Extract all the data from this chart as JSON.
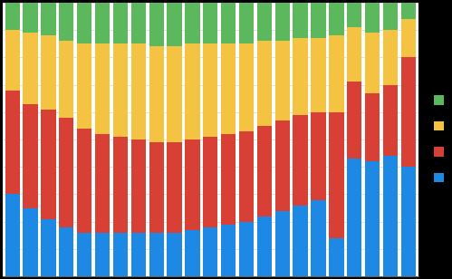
{
  "blue": [
    30,
    25,
    21,
    18,
    16,
    16,
    16,
    16,
    16,
    16,
    17,
    18,
    19,
    20,
    22,
    24,
    26,
    28,
    14,
    43,
    42,
    44,
    40
  ],
  "red": [
    38,
    38,
    40,
    40,
    38,
    36,
    35,
    34,
    33,
    33,
    33,
    33,
    33,
    33,
    33,
    33,
    33,
    32,
    46,
    28,
    25,
    26,
    40
  ],
  "yellow": [
    22,
    26,
    27,
    28,
    31,
    33,
    34,
    35,
    35,
    35,
    35,
    34,
    33,
    32,
    31,
    29,
    28,
    27,
    28,
    20,
    22,
    20,
    14
  ],
  "green": [
    10,
    11,
    12,
    14,
    15,
    15,
    15,
    15,
    16,
    16,
    15,
    15,
    15,
    15,
    14,
    14,
    13,
    13,
    12,
    9,
    11,
    10,
    6
  ],
  "colors_btop": [
    "#1e88e5",
    "#d94035",
    "#f5c342",
    "#5cb85c"
  ],
  "legend_colors": [
    "#5cb85c",
    "#f5c342",
    "#d94035",
    "#1e88e5"
  ],
  "n_bars": 23,
  "bar_width": 0.82,
  "ylim": [
    0,
    100
  ],
  "bg_color": "#000000",
  "plot_bg": "#ffffff",
  "figsize": [
    4.99,
    3.08
  ],
  "dpi": 100,
  "grid_color": "#aaaaaa",
  "grid_alpha": 0.5,
  "grid_lw": 0.5
}
